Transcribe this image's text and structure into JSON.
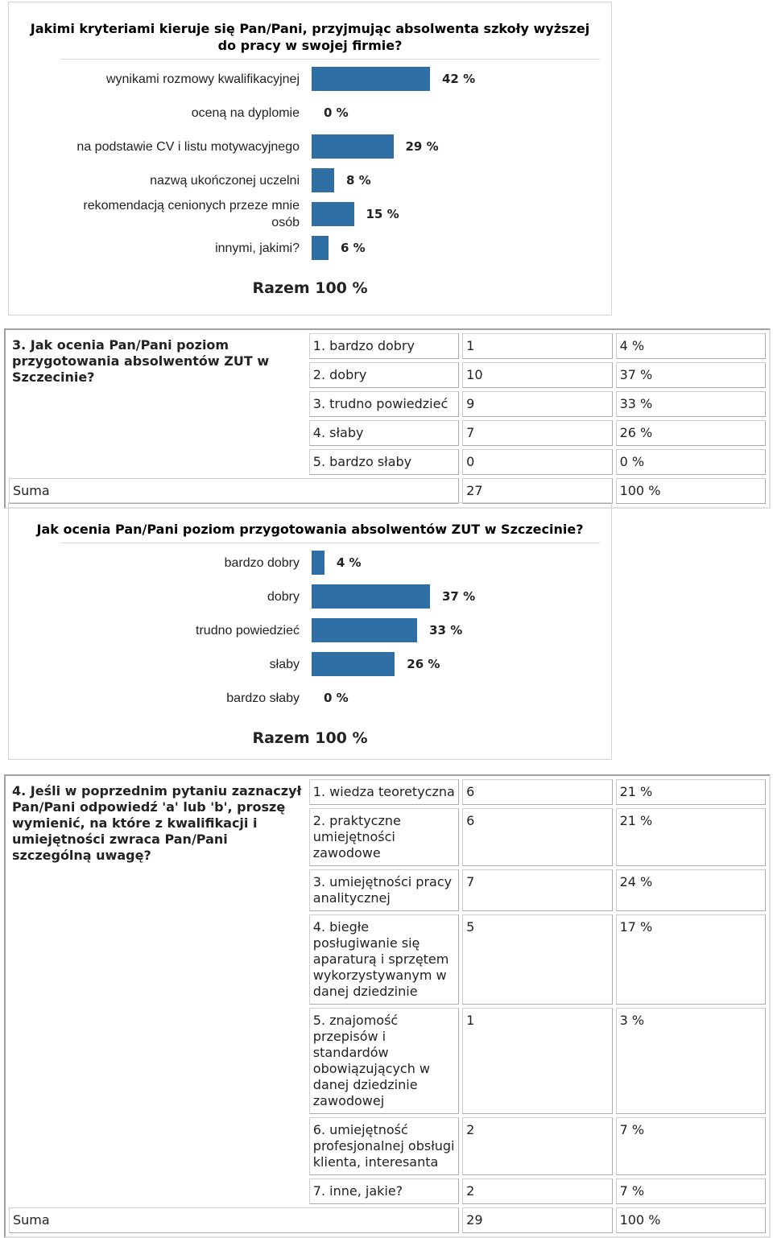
{
  "chart_data": [
    {
      "type": "bar",
      "title": "Jakimi kryteriami kieruje się Pan/Pani, przyjmując absolwenta szkoły wyższej do pracy w swojej firmie?",
      "categories": [
        "wynikami rozmowy kwalifikacyjnej",
        "oceną na dyplomie",
        "na podstawie CV i listu motywacyjnego",
        "nazwą ukończonej uczelni",
        "rekomendacją cenionych przeze mnie osób",
        "innymi, jakimi?"
      ],
      "values": [
        42,
        0,
        29,
        8,
        15,
        6
      ],
      "value_labels": [
        "42 %",
        "0 %",
        "29 %",
        "8 %",
        "15 %",
        "6 %"
      ],
      "total_label": "Razem 100 %",
      "color": "#2f6ea5"
    },
    {
      "type": "bar",
      "title": "Jak ocenia Pan/Pani poziom przygotowania absolwentów ZUT w Szczecinie?",
      "categories": [
        "bardzo dobry",
        "dobry",
        "trudno powiedzieć",
        "słaby",
        "bardzo słaby"
      ],
      "values": [
        4,
        37,
        33,
        26,
        0
      ],
      "value_labels": [
        "4 %",
        "37 %",
        "33 %",
        "26 %",
        "0 %"
      ],
      "total_label": "Razem 100 %",
      "color": "#2f6ea5"
    }
  ],
  "tables": [
    {
      "question": "3. Jak ocenia Pan/Pani poziom przygotowania absolwentów ZUT w Szczecinie?",
      "rows": [
        [
          "1. bardzo dobry",
          1,
          "4 %"
        ],
        [
          "2. dobry",
          10,
          "37 %"
        ],
        [
          "3. trudno powiedzieć",
          9,
          "33 %"
        ],
        [
          "4. słaby",
          7,
          "26 %"
        ],
        [
          "5. bardzo słaby",
          0,
          "0 %"
        ]
      ],
      "sum": [
        "Suma",
        27,
        "100 %"
      ]
    },
    {
      "question": "4. Jeśli w poprzednim pytaniu zaznaczył Pan/Pani odpowiedź 'a' lub 'b', proszę wymienić, na które z kwalifikacji i umiejętności zwraca Pan/Pani szczególną uwagę?",
      "rows": [
        [
          "1. wiedza teoretyczna",
          6,
          "21 %"
        ],
        [
          "2. praktyczne umiejętności zawodowe",
          6,
          "21 %"
        ],
        [
          "3. umiejętności pracy analitycznej",
          7,
          "24 %"
        ],
        [
          "4. biegłe posługiwanie się aparaturą i sprzętem wykorzystywanym w danej dziedzinie",
          5,
          "17 %"
        ],
        [
          "5. znajomość przepisów i standardów obowiązujących w danej dziedzinie zawodowej",
          1,
          "3 %"
        ],
        [
          "6. umiejętność profesjonalnej obsługi klienta, interesanta",
          2,
          "7 %"
        ],
        [
          "7. inne, jakie?",
          2,
          "7 %"
        ]
      ],
      "sum": [
        "Suma",
        29,
        "100 %"
      ]
    }
  ]
}
